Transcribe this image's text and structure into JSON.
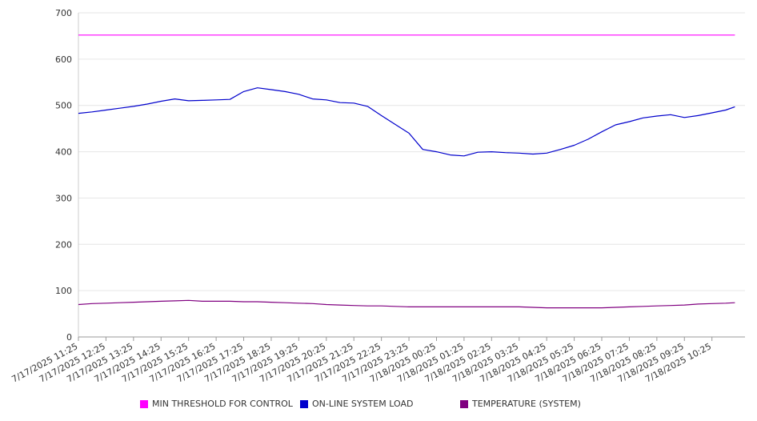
{
  "chart_data": {
    "type": "line",
    "title": "",
    "xlabel": "",
    "ylabel": "",
    "ylim": [
      0,
      700
    ],
    "yticks": [
      0,
      100,
      200,
      300,
      400,
      500,
      600,
      700
    ],
    "grid": true,
    "legend_position": "bottom",
    "x_ticks": [
      "7/17/2025 11:25",
      "7/17/2025 12:25",
      "7/17/2025 13:25",
      "7/17/2025 14:25",
      "7/17/2025 15:25",
      "7/17/2025 16:25",
      "7/17/2025 17:25",
      "7/17/2025 18:25",
      "7/17/2025 19:25",
      "7/17/2025 20:25",
      "7/17/2025 21:25",
      "7/17/2025 22:25",
      "7/17/2025 23:25",
      "7/18/2025 00:25",
      "7/18/2025 01:25",
      "7/18/2025 02:25",
      "7/18/2025 03:25",
      "7/18/2025 04:25",
      "7/18/2025 05:25",
      "7/18/2025 06:25",
      "7/18/2025 07:25",
      "7/18/2025 08:25",
      "7/18/2025 09:25",
      "7/18/2025 10:25"
    ],
    "x": [
      "7/17/2025 11:25",
      "7/17/2025 11:55",
      "7/17/2025 12:25",
      "7/17/2025 12:55",
      "7/17/2025 13:25",
      "7/17/2025 13:55",
      "7/17/2025 14:25",
      "7/17/2025 14:55",
      "7/17/2025 15:25",
      "7/17/2025 15:55",
      "7/17/2025 16:25",
      "7/17/2025 16:55",
      "7/17/2025 17:25",
      "7/17/2025 17:55",
      "7/17/2025 18:25",
      "7/17/2025 18:55",
      "7/17/2025 19:25",
      "7/17/2025 19:55",
      "7/17/2025 20:25",
      "7/17/2025 20:55",
      "7/17/2025 21:25",
      "7/17/2025 21:55",
      "7/17/2025 22:25",
      "7/17/2025 22:55",
      "7/17/2025 23:25",
      "7/17/2025 23:55",
      "7/18/2025 00:25",
      "7/18/2025 00:55",
      "7/18/2025 01:25",
      "7/18/2025 01:55",
      "7/18/2025 02:25",
      "7/18/2025 02:55",
      "7/18/2025 03:25",
      "7/18/2025 03:55",
      "7/18/2025 04:25",
      "7/18/2025 04:55",
      "7/18/2025 05:25",
      "7/18/2025 05:55",
      "7/18/2025 06:25",
      "7/18/2025 06:55",
      "7/18/2025 07:25",
      "7/18/2025 07:55",
      "7/18/2025 08:25",
      "7/18/2025 08:55",
      "7/18/2025 09:25",
      "7/18/2025 09:55",
      "7/18/2025 10:25",
      "7/18/2025 10:55",
      "7/18/2025 11:15"
    ],
    "series": [
      {
        "name": "MIN THRESHOLD FOR CONTROL",
        "color": "#ff00ff",
        "values": [
          652,
          652,
          652,
          652,
          652,
          652,
          652,
          652,
          652,
          652,
          652,
          652,
          652,
          652,
          652,
          652,
          652,
          652,
          652,
          652,
          652,
          652,
          652,
          652,
          652,
          652,
          652,
          652,
          652,
          652,
          652,
          652,
          652,
          652,
          652,
          652,
          652,
          652,
          652,
          652,
          652,
          652,
          652,
          652,
          652,
          652,
          652,
          652,
          652
        ]
      },
      {
        "name": "ON-LINE SYSTEM LOAD",
        "color": "#0000cc",
        "values": [
          483,
          486,
          490,
          494,
          498,
          503,
          509,
          514,
          510,
          511,
          512,
          513,
          530,
          538,
          534,
          530,
          524,
          514,
          512,
          506,
          505,
          498,
          478,
          459,
          440,
          405,
          400,
          393,
          391,
          399,
          400,
          398,
          397,
          395,
          397,
          405,
          414,
          427,
          443,
          458,
          465,
          473,
          477,
          480,
          474,
          478,
          484,
          490,
          497
        ]
      },
      {
        "name": "TEMPERATURE (SYSTEM)",
        "color": "#800080",
        "values": [
          70,
          72,
          73,
          74,
          75,
          76,
          77,
          78,
          79,
          77,
          77,
          77,
          76,
          76,
          75,
          74,
          73,
          72,
          70,
          69,
          68,
          67,
          67,
          66,
          65,
          65,
          65,
          65,
          65,
          65,
          65,
          65,
          65,
          64,
          63,
          63,
          63,
          63,
          63,
          64,
          65,
          66,
          67,
          68,
          69,
          71,
          72,
          73,
          74
        ]
      }
    ]
  }
}
